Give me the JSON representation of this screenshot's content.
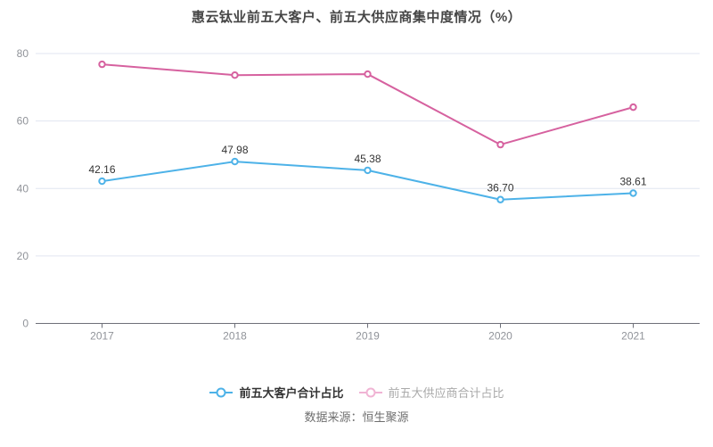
{
  "title": "惠云钛业前五大客户、前五大供应商集中度情况（%）",
  "source": "数据来源：恒生聚源",
  "chart_data": {
    "type": "line",
    "x": [
      "2017",
      "2018",
      "2019",
      "2020",
      "2021"
    ],
    "series": [
      {
        "name": "前五大客户合计占比",
        "values": [
          42.16,
          47.98,
          45.38,
          36.7,
          38.61
        ],
        "labels": [
          "42.16",
          "47.98",
          "45.38",
          "36.70",
          "38.61"
        ],
        "color": "#4db2e8"
      },
      {
        "name": "前五大供应商合计占比",
        "values": [
          76.8,
          73.6,
          73.9,
          53.0,
          64.1
        ],
        "labels": null,
        "color": "#d6619f"
      }
    ],
    "ylim": [
      0,
      80
    ],
    "yticks": [
      0,
      20,
      40,
      60,
      80
    ],
    "grid": true,
    "legend_position": "bottom",
    "marker": "hollow-circle",
    "colors": {
      "grid_line": "#e1e5f0",
      "axis_line": "#6e7079",
      "axis_label": "#909399",
      "data_label": "#333333"
    }
  },
  "legend": {
    "items": [
      {
        "label": "前五大客户合计占比",
        "marker_color": "#4db2e8",
        "text_color": "#333333"
      },
      {
        "label": "前五大供应商合计占比",
        "marker_color": "#f0b4d4",
        "text_color": "#aaaaaa"
      }
    ]
  }
}
